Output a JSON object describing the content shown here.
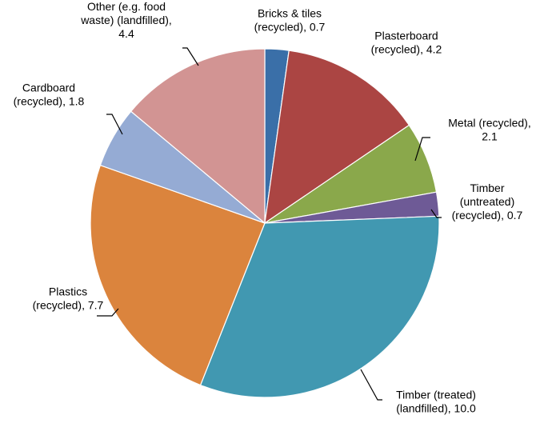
{
  "chart_data": {
    "type": "pie",
    "slices": [
      {
        "label": [
          "Bricks & tiles",
          "(recycled), 0.7"
        ],
        "value": 0.7,
        "color": "#3a6fa8"
      },
      {
        "label": [
          "Plasterboard",
          "(recycled), 4.2"
        ],
        "value": 4.2,
        "color": "#ab4543"
      },
      {
        "label": [
          "Metal (recycled),",
          "2.1"
        ],
        "value": 2.1,
        "color": "#8aa84b"
      },
      {
        "label": [
          "Timber",
          "(untreated)",
          "(recycled), 0.7"
        ],
        "value": 0.7,
        "color": "#6e5a96"
      },
      {
        "label": [
          "Timber (treated)",
          "(landfilled), 10.0"
        ],
        "value": 10.0,
        "color": "#4198b1"
      },
      {
        "label": [
          "Plastics",
          "(recycled), 7.7"
        ],
        "value": 7.7,
        "color": "#db843d"
      },
      {
        "label": [
          "Cardboard",
          "(recycled), 1.8"
        ],
        "value": 1.8,
        "color": "#95abd4"
      },
      {
        "label": [
          "Other (e.g. food",
          "waste) (landfilled),",
          "4.4"
        ],
        "value": 4.4,
        "color": "#d29493"
      }
    ],
    "start_angle": "12 o'clock",
    "direction": "clockwise",
    "legend": "none",
    "data_labels": "outside with leader lines"
  }
}
